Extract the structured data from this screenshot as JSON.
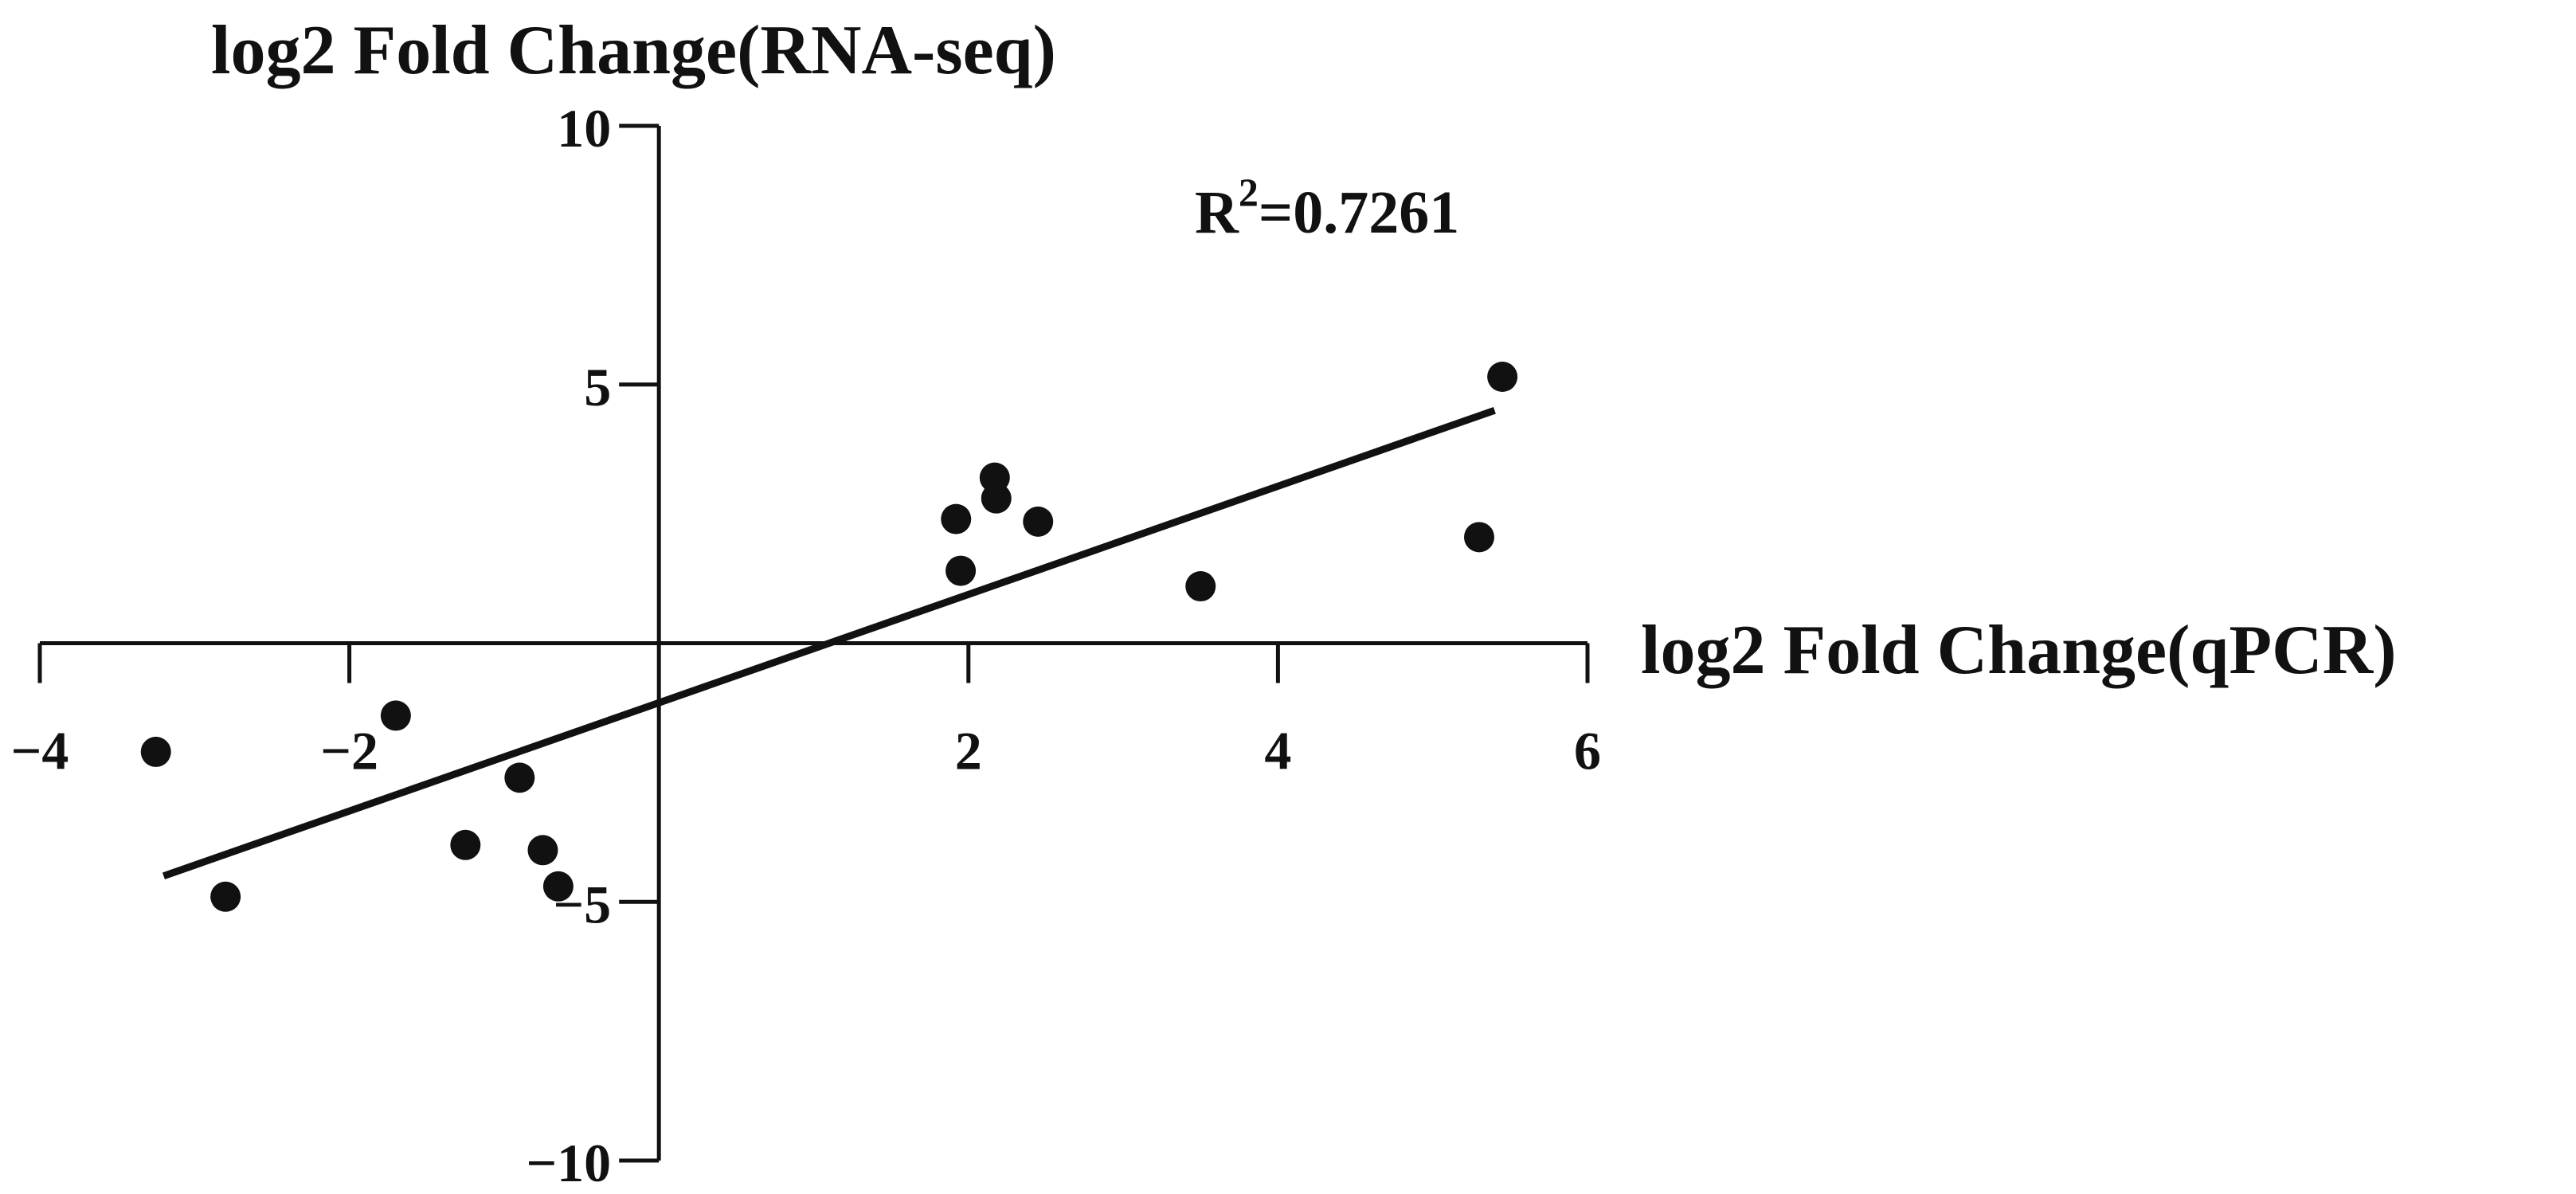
{
  "chart_data": {
    "type": "scatter",
    "title": "",
    "xlabel": "log2 Fold Change(qPCR)",
    "ylabel": "log2 Fold Change(RNA-seq)",
    "xlim": [
      -4,
      6
    ],
    "ylim": [
      -10,
      10
    ],
    "x_ticks": [
      -4,
      -2,
      2,
      4,
      6
    ],
    "x_tick_labels": [
      "−4",
      "−2",
      "2",
      "4",
      "6"
    ],
    "y_ticks": [
      10,
      5,
      -5,
      -10
    ],
    "y_tick_labels": [
      "10",
      "5",
      "−5",
      "−10"
    ],
    "annotation": {
      "text": "R",
      "sup": "2",
      "value": "=0.7261"
    },
    "points": [
      {
        "x": -3.25,
        "y": -2.1
      },
      {
        "x": -2.8,
        "y": -4.9
      },
      {
        "x": -1.7,
        "y": -1.4
      },
      {
        "x": -1.25,
        "y": -3.9
      },
      {
        "x": -0.9,
        "y": -2.6
      },
      {
        "x": -0.75,
        "y": -4.0
      },
      {
        "x": -0.65,
        "y": -4.7
      },
      {
        "x": 1.92,
        "y": 2.4
      },
      {
        "x": 1.95,
        "y": 1.4
      },
      {
        "x": 2.17,
        "y": 3.2
      },
      {
        "x": 2.18,
        "y": 2.8
      },
      {
        "x": 2.45,
        "y": 2.35
      },
      {
        "x": 3.5,
        "y": 1.1
      },
      {
        "x": 5.3,
        "y": 2.05
      },
      {
        "x": 5.45,
        "y": 5.15
      }
    ],
    "fit_line": {
      "x": [
        -3.2,
        5.4
      ],
      "y": [
        -4.5,
        4.5
      ]
    },
    "colors": {
      "points": "#111111",
      "line": "#111111",
      "axes": "#111111"
    },
    "grid": false,
    "legend": "none"
  }
}
